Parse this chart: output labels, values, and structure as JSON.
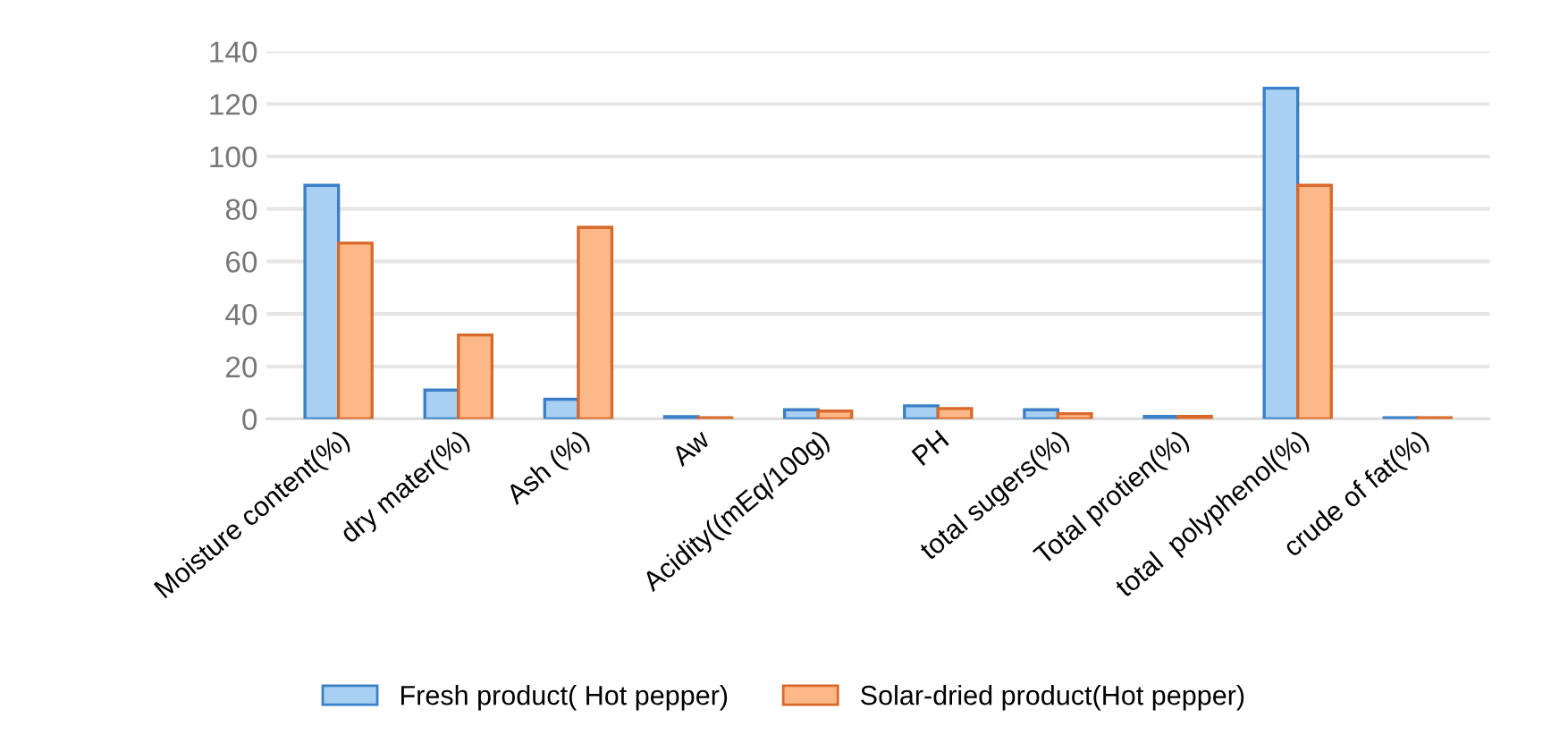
{
  "chart_data": {
    "type": "bar",
    "categories": [
      "Moisture content(%)",
      "dry mater(%)",
      "Ash (%)",
      "Aw",
      "Acidity((mEq/100g)",
      "PH",
      "total sugers(%)",
      "Total protien(%)",
      "total  polyphenol(%)",
      "crude of fat(%)"
    ],
    "series": [
      {
        "name": "Fresh product( Hot pepper)",
        "color": "#a9cff2",
        "values": [
          89,
          11,
          7.5,
          0.9,
          3.5,
          5,
          3.5,
          1,
          126,
          0.5
        ]
      },
      {
        "name": "Solar-dried product(Hot pepper)",
        "color": "#fdb88a",
        "values": [
          67,
          32,
          73,
          0.5,
          3,
          4,
          2,
          1,
          89,
          0.5
        ]
      }
    ],
    "ylim": [
      0,
      140
    ],
    "yticks": [
      0,
      20,
      40,
      60,
      80,
      100,
      120,
      140
    ],
    "grid": "y",
    "legend": "bottom"
  }
}
